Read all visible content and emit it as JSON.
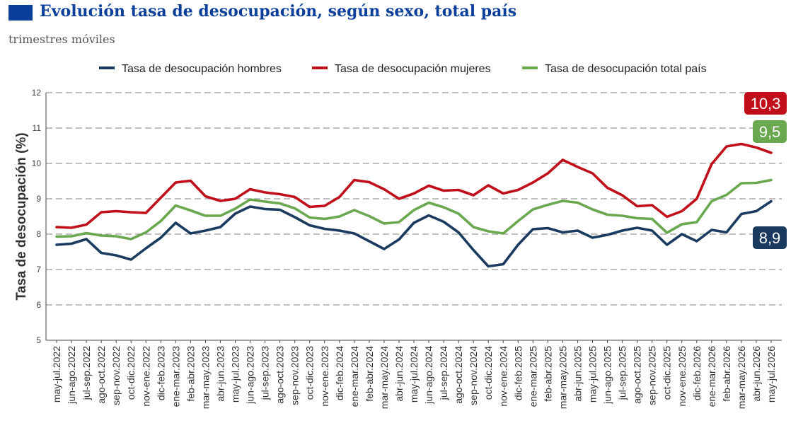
{
  "header": {
    "title": "Evolución tasa de desocupación, según sexo, total país",
    "subtitle": "trimestres móviles",
    "accent_color": "#0b3f9a"
  },
  "chart_data": {
    "type": "line",
    "ylabel": "Tasa de desocupación (%)",
    "xlabel": "",
    "ylim": [
      5,
      12
    ],
    "yticks": [
      5,
      6,
      7,
      8,
      9,
      10,
      11,
      12
    ],
    "grid": "horizontal-dashed",
    "legend_position": "top",
    "categories": [
      "may-jul.2022",
      "jun-ago.2022",
      "jul-sep.2022",
      "ago-oct.2022",
      "sep-nov.2022",
      "oct-dic.2022",
      "nov-ene.2022",
      "dic-feb.2023",
      "ene-mar.2023",
      "feb-abr.2023",
      "mar-may.2023",
      "abr-jun.2023",
      "may-jul.2023",
      "jun-ago.2023",
      "jul-sep.2023",
      "ago-oct.2023",
      "sep-nov.2023",
      "oct-dic.2023",
      "nov-ene.2023",
      "dic-feb.2024",
      "ene-mar.2024",
      "feb-abr.2024",
      "mar-may.2024",
      "abr-jun.2024",
      "may-jul.2024",
      "jun-ago.2024",
      "jul-sep.2024",
      "ago-oct.2024",
      "sep-nov.2024",
      "oct-dic.2024",
      "nov-ene.2024",
      "dic-feb.2025",
      "ene-mar.2025",
      "feb-abr.2025",
      "mar-may.2025",
      "abr-jun.2025",
      "may-jul.2025",
      "jun-ago.2025",
      "jul-sep.2025",
      "ago-oct.2025",
      "sep-nov.2025",
      "oct-dic.2025",
      "nov-ene.2025",
      "dic-feb.2026",
      "ene-mar.2026",
      "feb-abr.2026",
      "mar-may.2026",
      "abr-jun.2026",
      "may-jul.2026"
    ],
    "series": [
      {
        "name": "Tasa de desocupación hombres",
        "color": "#1b3a60",
        "end_label": "8,9",
        "values": [
          7.7,
          7.73,
          7.86,
          7.47,
          7.4,
          7.28,
          7.6,
          7.9,
          8.32,
          8.02,
          8.1,
          8.2,
          8.58,
          8.78,
          8.71,
          8.69,
          8.48,
          8.25,
          8.15,
          8.1,
          8.02,
          7.8,
          7.58,
          7.85,
          8.32,
          8.53,
          8.35,
          8.05,
          7.55,
          7.09,
          7.15,
          7.7,
          8.14,
          8.17,
          8.05,
          8.1,
          7.9,
          7.98,
          8.1,
          8.18,
          8.1,
          7.7,
          8.0,
          7.8,
          8.12,
          8.05,
          8.57,
          8.65,
          8.93
        ]
      },
      {
        "name": "Tasa de desocupación mujeres",
        "color": "#c00f1a",
        "end_label": "10,3",
        "values": [
          8.2,
          8.18,
          8.27,
          8.62,
          8.65,
          8.62,
          8.6,
          9.03,
          9.46,
          9.51,
          9.07,
          8.94,
          9.0,
          9.27,
          9.18,
          9.13,
          9.05,
          8.77,
          8.8,
          9.05,
          9.53,
          9.47,
          9.27,
          9.0,
          9.15,
          9.37,
          9.23,
          9.25,
          9.1,
          9.38,
          9.15,
          9.25,
          9.46,
          9.72,
          10.1,
          9.9,
          9.72,
          9.31,
          9.1,
          8.79,
          8.82,
          8.49,
          8.65,
          9.0,
          9.98,
          10.48,
          10.55,
          10.45,
          10.3
        ]
      },
      {
        "name": "Tasa de desocupación total país",
        "color": "#6aa84f",
        "end_label": "9,5",
        "values": [
          7.93,
          7.94,
          8.03,
          7.96,
          7.94,
          7.86,
          8.05,
          8.37,
          8.81,
          8.67,
          8.52,
          8.52,
          8.72,
          8.98,
          8.92,
          8.87,
          8.73,
          8.47,
          8.43,
          8.5,
          8.68,
          8.51,
          8.3,
          8.34,
          8.68,
          8.89,
          8.76,
          8.58,
          8.2,
          8.08,
          8.02,
          8.37,
          8.7,
          8.83,
          8.94,
          8.89,
          8.7,
          8.55,
          8.52,
          8.45,
          8.43,
          8.04,
          8.28,
          8.34,
          8.93,
          9.11,
          9.44,
          9.45,
          9.53
        ]
      }
    ]
  }
}
